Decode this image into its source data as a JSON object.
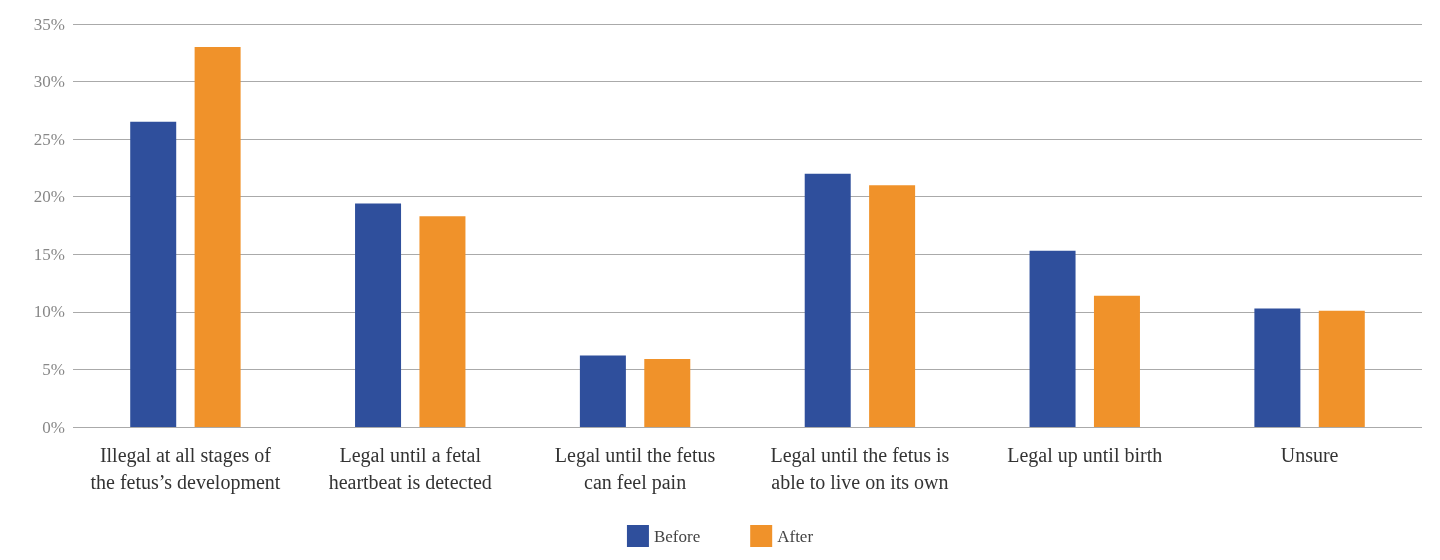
{
  "chart_data": {
    "type": "bar",
    "categories": [
      "Illegal at all stages of the fetus’s development",
      "Legal until a fetal heartbeat is detected",
      "Legal until the fetus can feel pain",
      "Legal until the fetus is able to live on its own",
      "Legal up until birth",
      "Unsure"
    ],
    "series": [
      {
        "name": "Before",
        "color": "#2f4f9c",
        "values": [
          26.5,
          19.4,
          6.2,
          22,
          15.3,
          10.3
        ]
      },
      {
        "name": "After",
        "color": "#f0922a",
        "values": [
          33,
          18.3,
          5.9,
          21,
          11.4,
          10.1
        ]
      }
    ],
    "ylim": [
      0,
      35
    ],
    "yticks": [
      {
        "value": 0,
        "label": "0%"
      },
      {
        "value": 5,
        "label": "5%"
      },
      {
        "value": 10,
        "label": "10%"
      },
      {
        "value": 15,
        "label": "15%"
      },
      {
        "value": 20,
        "label": "20%"
      },
      {
        "value": 25,
        "label": "25%"
      },
      {
        "value": 30,
        "label": "30%"
      },
      {
        "value": 35,
        "label": "35%"
      }
    ],
    "grid": "y",
    "legend": "bottom"
  }
}
